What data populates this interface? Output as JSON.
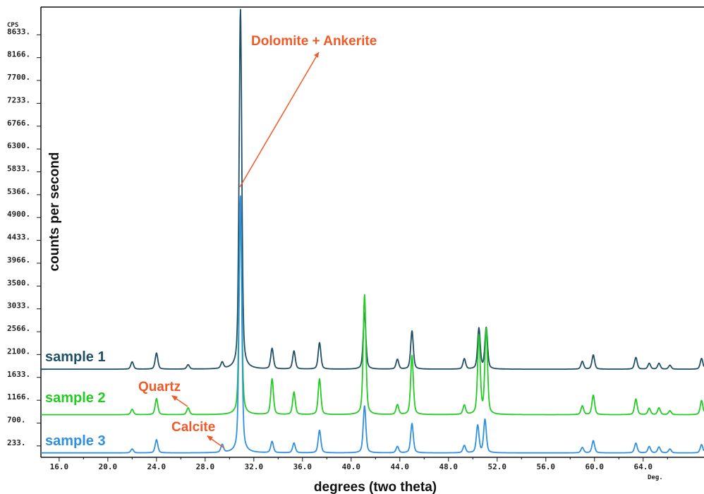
{
  "chart_data": {
    "type": "line",
    "title": "",
    "xlabel": "degrees (two theta)",
    "ylabel": "counts per second",
    "y_unit_label": "CPS",
    "x_unit_label": "Deg.",
    "xlim": [
      14.5,
      69.0
    ],
    "ylim": [
      0,
      9200
    ],
    "y_ticks": [
      "8633",
      "8166",
      "7700",
      "7233",
      "6766",
      "6300",
      "5833",
      "5366",
      "4900",
      "4433",
      "3966",
      "3500",
      "3033",
      "2566",
      "2100",
      "1633",
      "1166",
      "700",
      "233"
    ],
    "x_ticks": [
      "16.0",
      "20.0",
      "24.0",
      "28.0",
      "32.0",
      "36.0",
      "40.0",
      "44.0",
      "48.0",
      "52.0",
      "56.0",
      "60.0",
      "64.0"
    ],
    "grid": false,
    "legend": "none",
    "series": [
      {
        "name": "sample 1",
        "color": "#1f4f66",
        "baseline": 1800,
        "peaks": [
          [
            22.0,
            150
          ],
          [
            24.0,
            330
          ],
          [
            26.6,
            90
          ],
          [
            29.4,
            130
          ],
          [
            30.9,
            7350
          ],
          [
            33.5,
            420
          ],
          [
            35.3,
            370
          ],
          [
            37.4,
            540
          ],
          [
            41.1,
            1150
          ],
          [
            43.8,
            200
          ],
          [
            45.0,
            780
          ],
          [
            49.3,
            210
          ],
          [
            50.5,
            830
          ],
          [
            51.1,
            840
          ],
          [
            59.0,
            160
          ],
          [
            59.9,
            290
          ],
          [
            63.4,
            240
          ],
          [
            64.5,
            120
          ],
          [
            65.3,
            120
          ],
          [
            66.2,
            80
          ],
          [
            68.8,
            220
          ]
        ]
      },
      {
        "name": "sample 2",
        "color": "#22cc22",
        "baseline": 870,
        "peaks": [
          [
            22.0,
            110
          ],
          [
            24.0,
            330
          ],
          [
            26.6,
            140
          ],
          [
            30.9,
            4200
          ],
          [
            33.5,
            730
          ],
          [
            35.3,
            460
          ],
          [
            37.4,
            730
          ],
          [
            41.1,
            2450
          ],
          [
            43.8,
            200
          ],
          [
            45.0,
            1210
          ],
          [
            49.3,
            190
          ],
          [
            50.5,
            1600
          ],
          [
            51.1,
            1740
          ],
          [
            59.0,
            180
          ],
          [
            59.9,
            400
          ],
          [
            63.4,
            320
          ],
          [
            64.5,
            130
          ],
          [
            65.3,
            140
          ],
          [
            66.2,
            80
          ],
          [
            68.8,
            290
          ]
        ]
      },
      {
        "name": "sample 3",
        "color": "#2f8fe0",
        "baseline": 90,
        "peaks": [
          [
            22.0,
            80
          ],
          [
            24.0,
            270
          ],
          [
            29.4,
            160
          ],
          [
            30.9,
            5250
          ],
          [
            33.5,
            230
          ],
          [
            35.3,
            200
          ],
          [
            37.4,
            460
          ],
          [
            41.1,
            960
          ],
          [
            43.8,
            130
          ],
          [
            45.0,
            600
          ],
          [
            49.3,
            150
          ],
          [
            50.4,
            560
          ],
          [
            51.0,
            680
          ],
          [
            59.0,
            110
          ],
          [
            59.9,
            250
          ],
          [
            63.4,
            200
          ],
          [
            64.5,
            130
          ],
          [
            65.3,
            120
          ],
          [
            66.2,
            80
          ],
          [
            68.8,
            170
          ]
        ]
      }
    ],
    "annotations": [
      {
        "text": "Dolomite + Ankerite",
        "color": "#f05a28"
      },
      {
        "text": "Quartz",
        "color": "#f05a28"
      },
      {
        "text": "Calcite",
        "color": "#f05a28"
      }
    ]
  }
}
